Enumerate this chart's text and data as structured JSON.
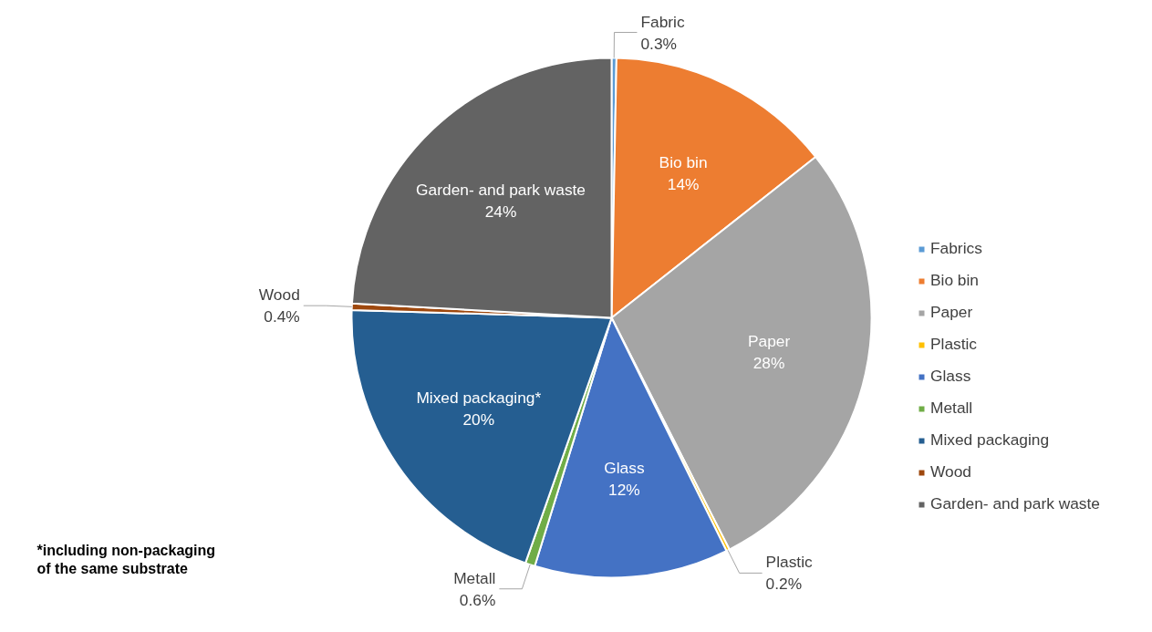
{
  "chart_data": {
    "type": "pie",
    "categories": [
      "Fabrics",
      "Bio bin",
      "Paper",
      "Plastic",
      "Glass",
      "Metall",
      "Mixed packaging",
      "Wood",
      "Garden- and park waste"
    ],
    "values": [
      0.3,
      14,
      28,
      0.2,
      12,
      0.6,
      20,
      0.4,
      24
    ],
    "value_labels": [
      "Fabric\n0.3%",
      "Bio bin\n14%",
      "Paper\n28%",
      "Plastic\n0.2%",
      "Glass\n12%",
      "Metall\n0.6%",
      "Mixed packaging*\n20%",
      "Wood\n0.4%",
      "Garden- and park waste\n24%"
    ],
    "colors": [
      "#5b9bd5",
      "#ed7d31",
      "#a5a5a5",
      "#ffc000",
      "#4472c4",
      "#70ad47",
      "#255e91",
      "#9e480e",
      "#636363"
    ],
    "legend": "right",
    "annotations": [
      "*including non-packaging\nof the same substrate"
    ]
  }
}
